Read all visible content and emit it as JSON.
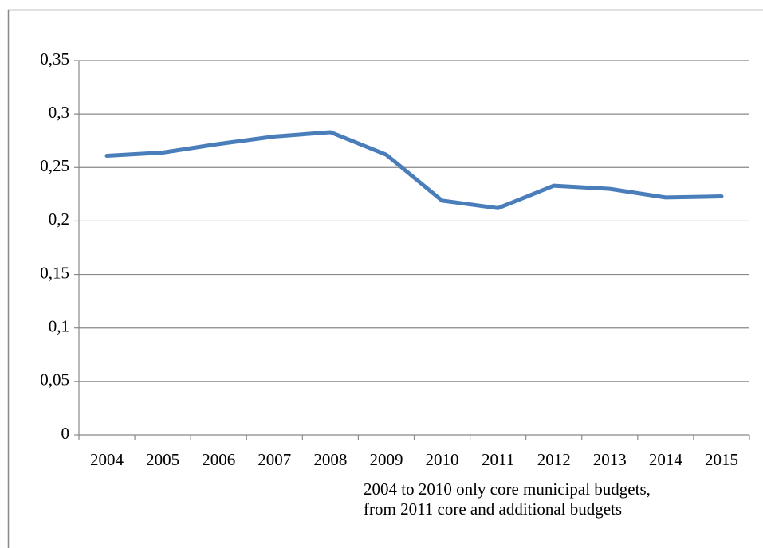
{
  "chart_data": {
    "type": "line",
    "categories": [
      "2004",
      "2005",
      "2006",
      "2007",
      "2008",
      "2009",
      "2010",
      "2011",
      "2012",
      "2013",
      "2014",
      "2015"
    ],
    "series": [
      {
        "color": "#4a7ebb",
        "values": [
          0.261,
          0.264,
          0.272,
          0.279,
          0.283,
          0.262,
          0.219,
          0.212,
          0.233,
          0.23,
          0.222,
          0.223
        ]
      }
    ],
    "ylim": [
      0,
      0.35
    ],
    "yticks": [
      0,
      {
        "value": 0.05,
        "label": "0,05"
      },
      {
        "value": 0.1,
        "label": "0,1"
      },
      {
        "value": 0.15,
        "label": "0,15"
      },
      {
        "value": 0.2,
        "label": "0,2"
      },
      {
        "value": 0.25,
        "label": "0,25"
      },
      {
        "value": 0.3,
        "label": "0,3"
      },
      {
        "value": 0.35,
        "label": "0,35"
      }
    ],
    "grid": true,
    "annotations": [
      "2004 to 2010 only core municipal budgets,",
      "from 2011 core and additional budgets"
    ]
  }
}
